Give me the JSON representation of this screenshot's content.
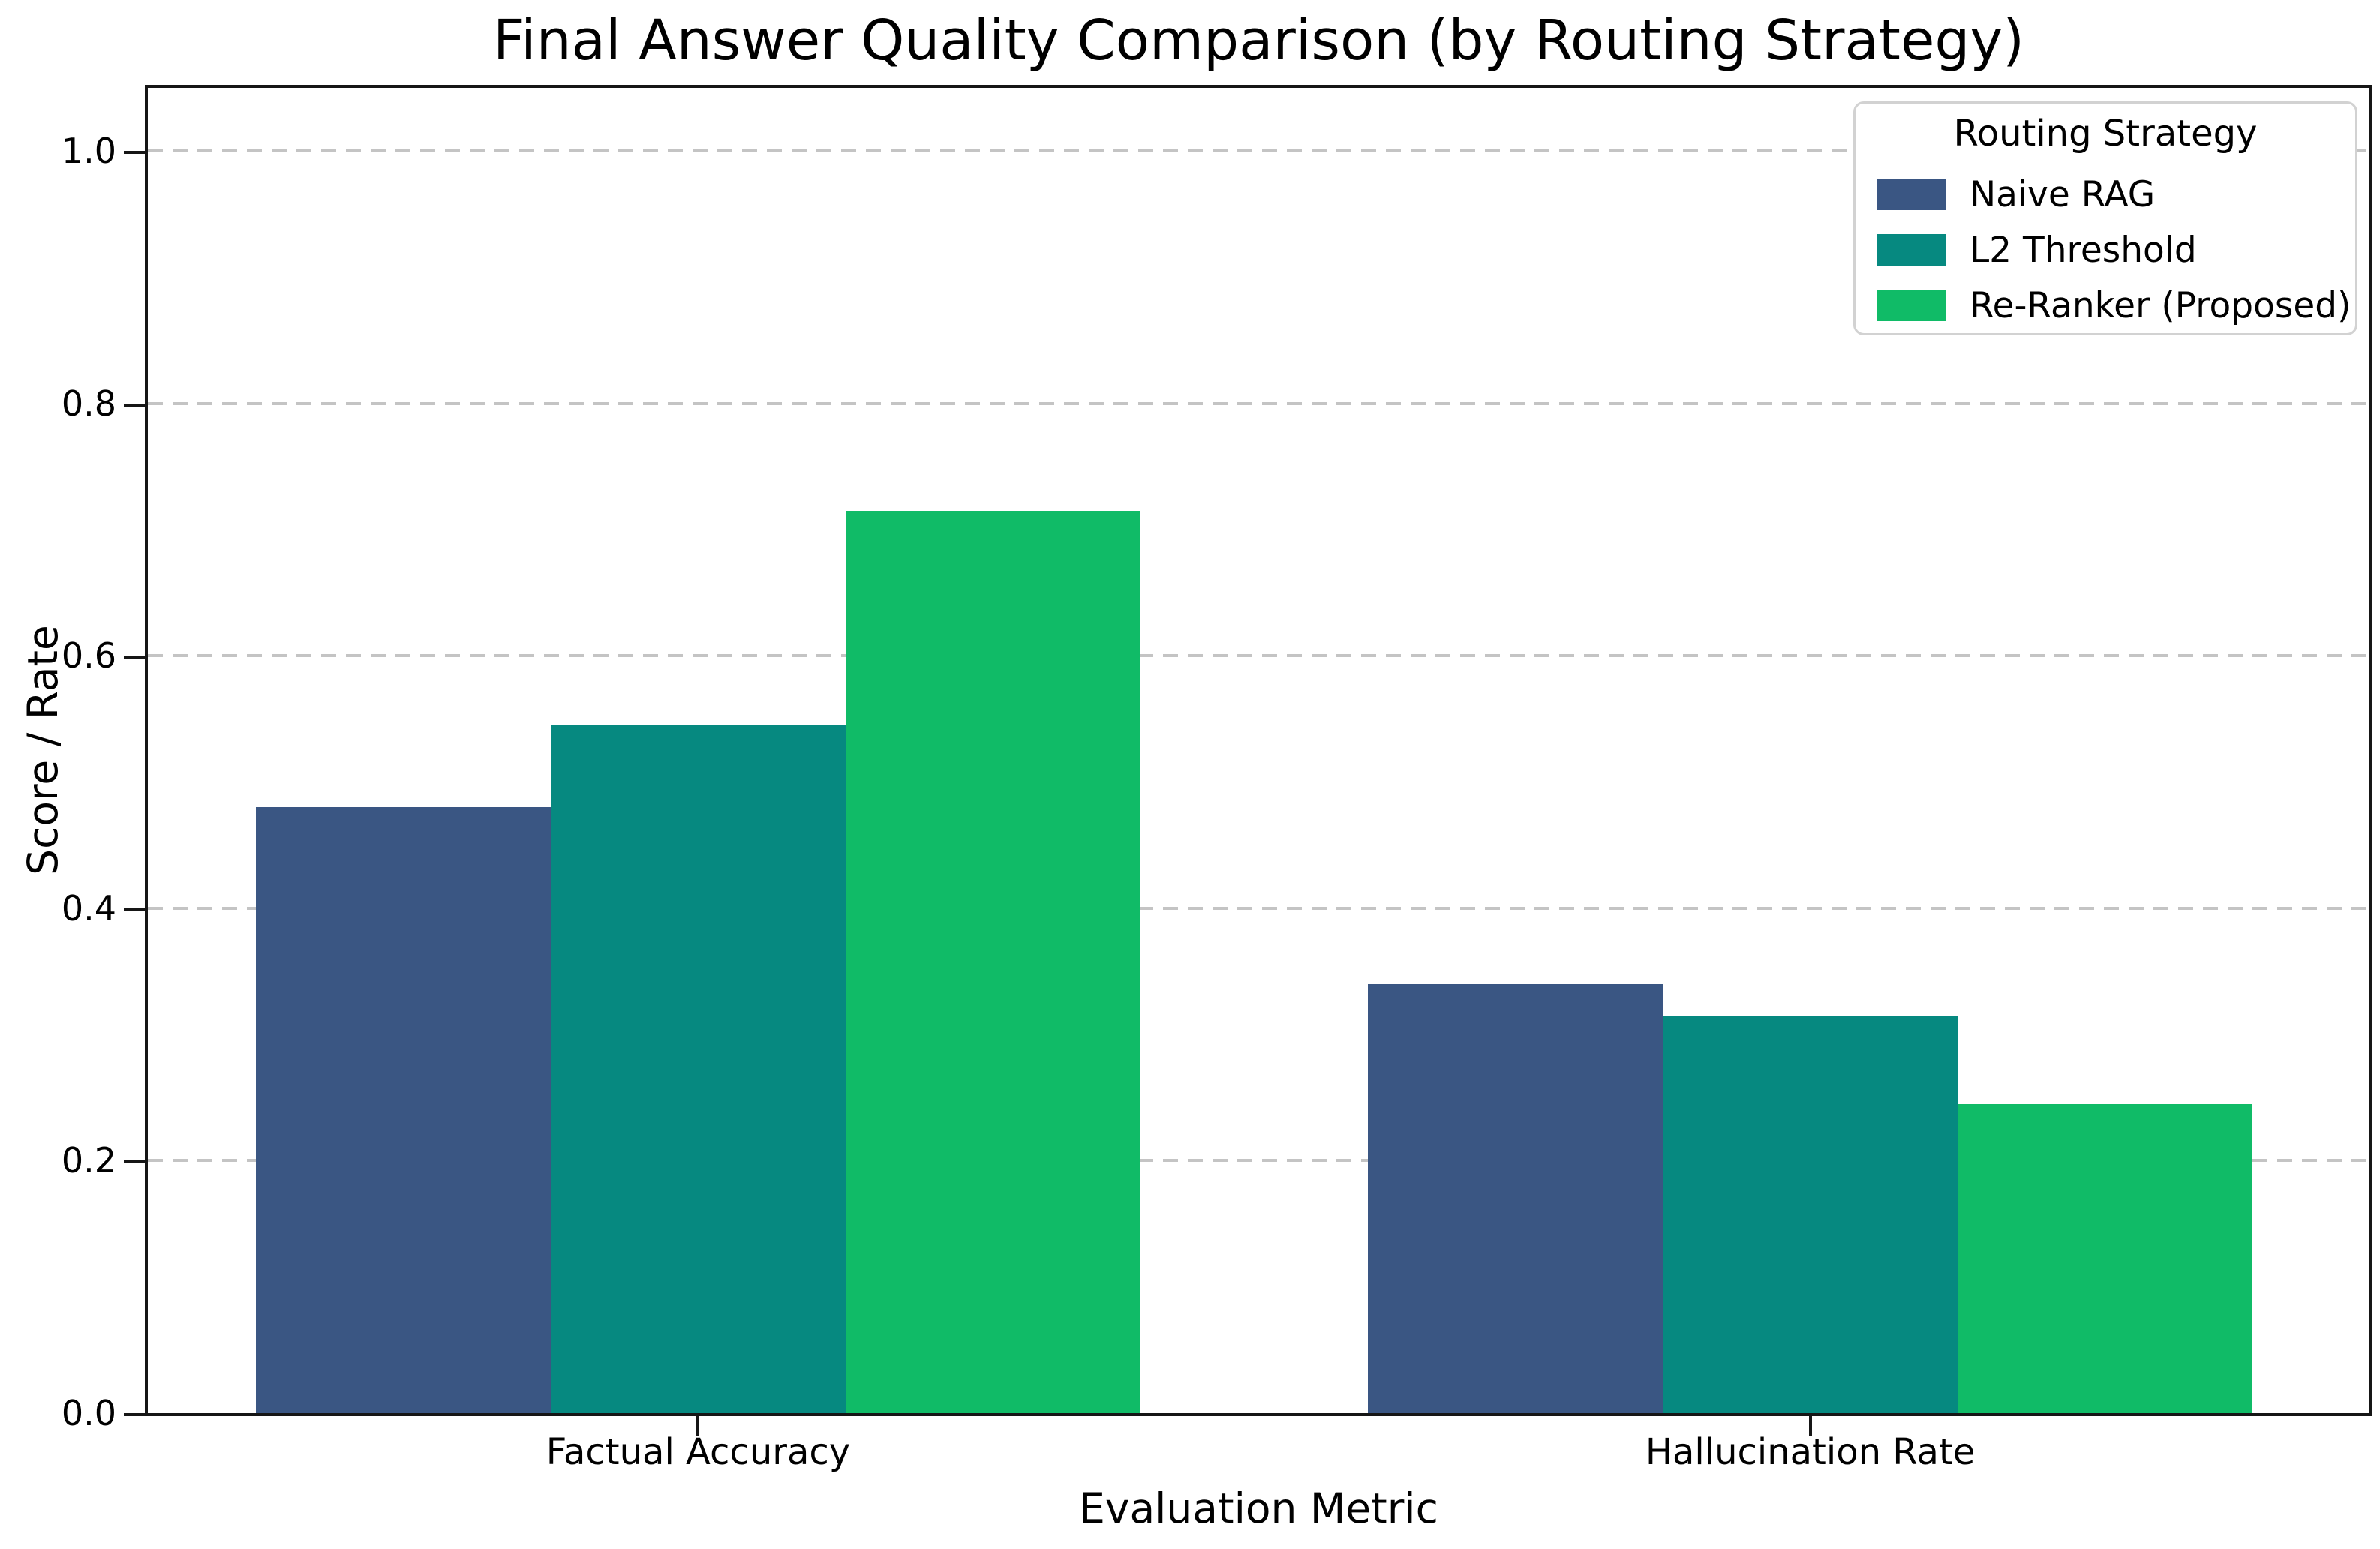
{
  "chart_data": {
    "type": "bar",
    "title": "Final Answer Quality Comparison (by Routing Strategy)",
    "xlabel": "Evaluation Metric",
    "ylabel": "Score / Rate",
    "categories": [
      "Factual Accuracy",
      "Hallucination Rate"
    ],
    "series": [
      {
        "name": "Naive RAG",
        "color": "#3A5683",
        "values": [
          0.48,
          0.34
        ]
      },
      {
        "name": "L2 Threshold",
        "color": "#068980",
        "values": [
          0.545,
          0.315
        ]
      },
      {
        "name": "Re-Ranker (Proposed)",
        "color": "#10BB67",
        "values": [
          0.715,
          0.245
        ]
      }
    ],
    "legend": {
      "title": "Routing Strategy",
      "position": "upper-right"
    },
    "ylim": [
      0,
      1.05
    ],
    "yticks": [
      0.0,
      0.2,
      0.4,
      0.6,
      0.8,
      1.0
    ],
    "ytick_labels": [
      "0.0",
      "0.2",
      "0.4",
      "0.6",
      "0.8",
      "1.0"
    ],
    "grid": "horizontal-dashed",
    "grid_color": "#c4c4c4",
    "background": "#ffffff"
  }
}
